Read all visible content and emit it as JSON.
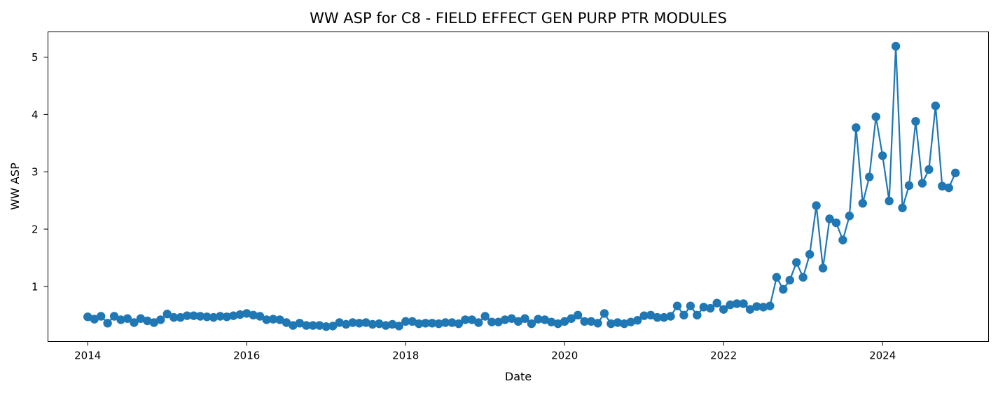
{
  "chart_data": {
    "type": "line",
    "title": "WW ASP for C8 - FIELD EFFECT GEN PURP PTR MODULES",
    "xlabel": "Date",
    "ylabel": "WW ASP",
    "xlim": [
      "2013-07-01",
      "2025-05-01"
    ],
    "ylim": [
      0.04,
      5.44
    ],
    "xticks": [
      "2014",
      "2016",
      "2018",
      "2020",
      "2022",
      "2024"
    ],
    "yticks": [
      "1",
      "2",
      "3",
      "4",
      "5"
    ],
    "grid": false,
    "color": "#1f77b4",
    "series": [
      {
        "x": [
          "2014-01",
          "2014-02",
          "2014-03",
          "2014-04",
          "2014-05",
          "2014-06",
          "2014-07",
          "2014-08",
          "2014-09",
          "2014-10",
          "2014-11",
          "2014-12",
          "2015-01",
          "2015-02",
          "2015-03",
          "2015-04",
          "2015-05",
          "2015-06",
          "2015-07",
          "2015-08",
          "2015-09",
          "2015-10",
          "2015-11",
          "2015-12",
          "2016-01",
          "2016-02",
          "2016-03",
          "2016-04",
          "2016-05",
          "2016-06",
          "2016-07",
          "2016-08",
          "2016-09",
          "2016-10",
          "2016-11",
          "2016-12",
          "2017-01",
          "2017-02",
          "2017-03",
          "2017-04",
          "2017-05",
          "2017-06",
          "2017-07",
          "2017-08",
          "2017-09",
          "2017-10",
          "2017-11",
          "2017-12",
          "2018-01",
          "2018-02",
          "2018-03",
          "2018-04",
          "2018-05",
          "2018-06",
          "2018-07",
          "2018-08",
          "2018-09",
          "2018-10",
          "2018-11",
          "2018-12",
          "2019-01",
          "2019-02",
          "2019-03",
          "2019-04",
          "2019-05",
          "2019-06",
          "2019-07",
          "2019-08",
          "2019-09",
          "2019-10",
          "2019-11",
          "2019-12",
          "2020-01",
          "2020-02",
          "2020-03",
          "2020-04",
          "2020-05",
          "2020-06",
          "2020-07",
          "2020-08",
          "2020-09",
          "2020-10",
          "2020-11",
          "2020-12",
          "2021-01",
          "2021-02",
          "2021-03",
          "2021-04",
          "2021-05",
          "2021-06",
          "2021-07",
          "2021-08",
          "2021-09",
          "2021-10",
          "2021-11",
          "2021-12",
          "2022-01",
          "2022-02",
          "2022-03",
          "2022-04",
          "2022-05",
          "2022-06",
          "2022-07",
          "2022-08",
          "2022-09",
          "2022-10",
          "2022-11",
          "2022-12",
          "2023-01",
          "2023-02",
          "2023-03",
          "2023-04",
          "2023-05",
          "2023-06",
          "2023-07",
          "2023-08",
          "2023-09",
          "2023-10",
          "2023-11",
          "2023-12",
          "2024-01",
          "2024-02",
          "2024-03",
          "2024-04",
          "2024-05",
          "2024-06",
          "2024-07",
          "2024-08",
          "2024-09",
          "2024-10",
          "2024-11",
          "2024-12"
        ],
        "y": [
          0.47,
          0.43,
          0.48,
          0.36,
          0.48,
          0.42,
          0.44,
          0.37,
          0.44,
          0.4,
          0.37,
          0.42,
          0.52,
          0.46,
          0.46,
          0.49,
          0.49,
          0.48,
          0.47,
          0.46,
          0.48,
          0.47,
          0.49,
          0.51,
          0.53,
          0.5,
          0.48,
          0.42,
          0.43,
          0.42,
          0.37,
          0.32,
          0.36,
          0.32,
          0.32,
          0.32,
          0.3,
          0.31,
          0.37,
          0.34,
          0.37,
          0.36,
          0.37,
          0.34,
          0.35,
          0.32,
          0.34,
          0.31,
          0.39,
          0.39,
          0.35,
          0.36,
          0.36,
          0.35,
          0.37,
          0.37,
          0.35,
          0.42,
          0.42,
          0.37,
          0.48,
          0.38,
          0.38,
          0.42,
          0.44,
          0.39,
          0.44,
          0.35,
          0.43,
          0.42,
          0.38,
          0.35,
          0.39,
          0.44,
          0.5,
          0.39,
          0.39,
          0.36,
          0.53,
          0.35,
          0.37,
          0.35,
          0.38,
          0.41,
          0.49,
          0.5,
          0.46,
          0.46,
          0.48,
          0.66,
          0.5,
          0.66,
          0.5,
          0.64,
          0.62,
          0.71,
          0.6,
          0.68,
          0.7,
          0.7,
          0.6,
          0.65,
          0.64,
          0.66,
          1.16,
          0.95,
          1.11,
          1.42,
          1.16,
          1.56,
          2.41,
          1.32,
          2.18,
          2.11,
          1.81,
          2.23,
          3.77,
          2.45,
          2.91,
          3.96,
          3.28,
          2.49,
          5.19,
          2.37,
          2.76,
          3.88,
          2.8,
          3.04,
          4.15,
          2.75,
          2.72,
          2.98
        ]
      }
    ]
  }
}
